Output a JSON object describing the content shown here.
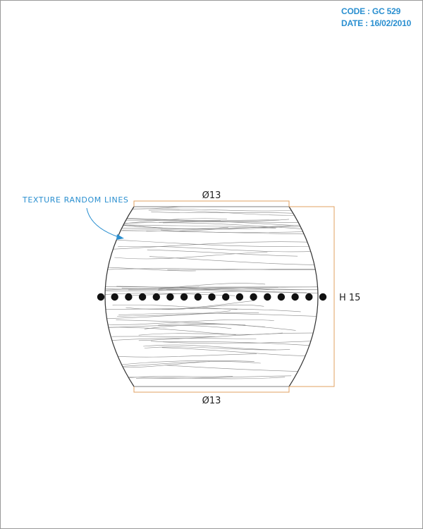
{
  "header": {
    "code": "CODE : GC 529",
    "date": "DATE : 16/02/2010"
  },
  "drawing": {
    "callout_label": "TEXTURE RANDOM LINES",
    "top_diameter_label": "Ø13",
    "bottom_diameter_label": "Ø13",
    "height_label": "H 15",
    "dimension_color": "#e0a060",
    "callout_color": "#2a8fd0",
    "outline_color": "#333333",
    "bead_color": "#111111",
    "bead_count": 17
  }
}
